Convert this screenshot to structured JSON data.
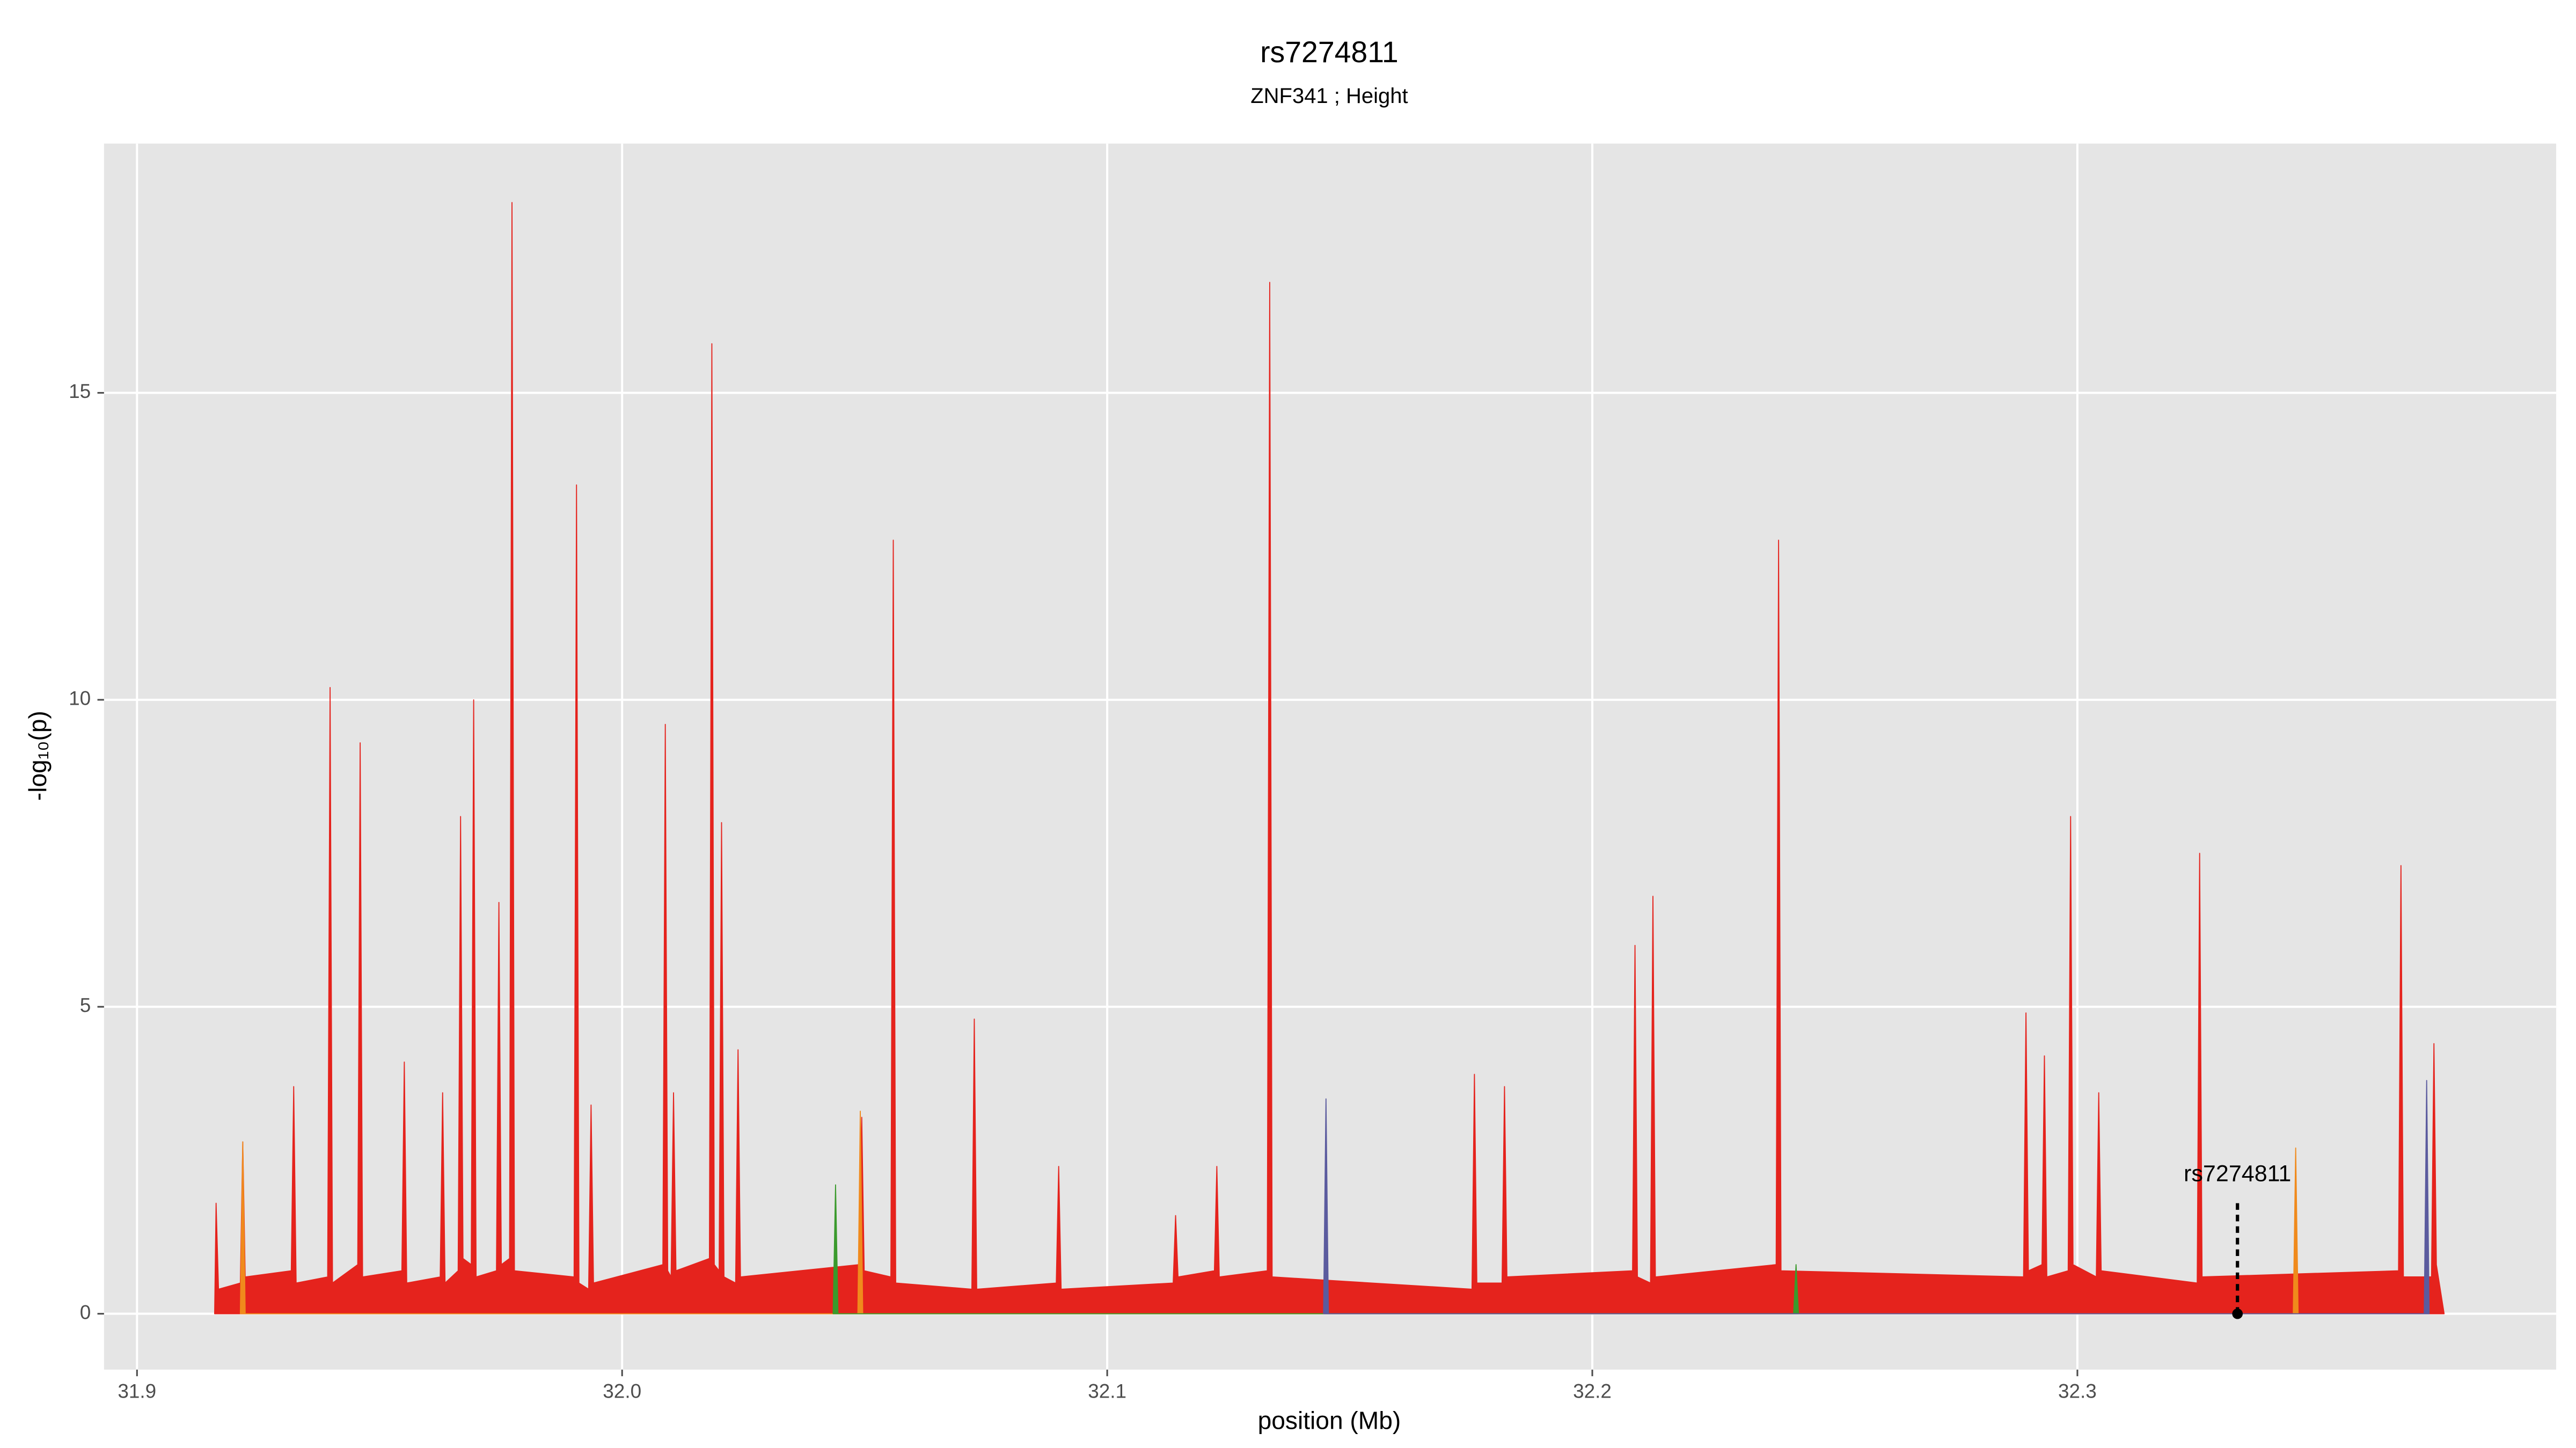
{
  "chart_data": {
    "type": "area",
    "title": "rs7274811",
    "subtitle": "ZNF341 ; Height",
    "x_label": "position (Mb)",
    "y_label": "-log₁₀(p)",
    "xlim": [
      31.8932,
      32.3987
    ],
    "ylim": [
      -0.91,
      19.06
    ],
    "xticks": [
      31.9,
      {
        "value": 32,
        "label": "32.0"
      },
      32.1,
      32.2,
      32.3
    ],
    "yticks": [
      0,
      5,
      10,
      15
    ],
    "grid": true,
    "series": [
      {
        "color": "#e5231d",
        "x": [
          31.916,
          31.9163,
          31.9168,
          31.9213,
          31.9218,
          31.9223,
          31.9318,
          31.9323,
          31.9328,
          31.9393,
          31.9398,
          31.9403,
          31.9455,
          31.946,
          31.9465,
          31.9546,
          31.9551,
          31.9556,
          31.9625,
          31.963,
          31.9635,
          31.9662,
          31.9667,
          31.9672,
          31.9689,
          31.9694,
          31.9699,
          31.9741,
          31.9746,
          31.9751,
          31.9768,
          31.9773,
          31.9778,
          31.9901,
          31.9906,
          31.9911,
          31.9931,
          31.9936,
          31.9941,
          32.0084,
          32.0089,
          32.0094,
          32.0101,
          32.0106,
          32.0111,
          32.018,
          32.0185,
          32.019,
          32.02,
          32.0205,
          32.021,
          32.0234,
          32.0239,
          32.0244,
          32.0489,
          32.0494,
          32.0499,
          32.0554,
          32.0559,
          32.0564,
          32.0721,
          32.0726,
          32.0731,
          32.0895,
          32.09,
          32.0905,
          32.1136,
          32.1141,
          32.1146,
          32.1221,
          32.1226,
          32.1231,
          32.133,
          32.1335,
          32.134,
          32.1752,
          32.1757,
          32.1762,
          32.1814,
          32.1819,
          32.1824,
          32.2083,
          32.2088,
          32.2093,
          32.212,
          32.2125,
          32.213,
          32.2379,
          32.2384,
          32.2389,
          32.2889,
          32.2894,
          32.2899,
          32.2927,
          32.2932,
          32.2937,
          32.2981,
          32.2986,
          32.2991,
          32.3039,
          32.3044,
          32.3049,
          32.3247,
          32.3252,
          32.3257,
          32.3662,
          32.3667,
          32.3672,
          32.373,
          32.3735,
          32.374,
          32.3756
        ],
        "values": [
          0,
          1.8,
          0.4,
          0.5,
          2.8,
          0.6,
          0.7,
          3.7,
          0.5,
          0.6,
          10.2,
          0.5,
          0.8,
          9.3,
          0.6,
          0.7,
          4.1,
          0.5,
          0.6,
          3.6,
          0.5,
          0.7,
          8.1,
          0.9,
          0.8,
          10.0,
          0.6,
          0.7,
          6.7,
          0.8,
          0.9,
          18.1,
          0.7,
          0.6,
          13.5,
          0.5,
          0.4,
          3.4,
          0.5,
          0.8,
          9.6,
          0.7,
          0.6,
          3.6,
          0.7,
          0.9,
          15.8,
          0.8,
          0.7,
          8.0,
          0.6,
          0.5,
          4.3,
          0.6,
          0.8,
          3.2,
          0.7,
          0.6,
          12.6,
          0.5,
          0.4,
          4.8,
          0.4,
          0.5,
          2.4,
          0.4,
          0.5,
          1.6,
          0.6,
          0.7,
          2.4,
          0.6,
          0.7,
          16.8,
          0.6,
          0.4,
          3.9,
          0.5,
          0.5,
          3.7,
          0.6,
          0.7,
          6.0,
          0.6,
          0.5,
          6.8,
          0.6,
          0.8,
          12.6,
          0.7,
          0.6,
          4.9,
          0.7,
          0.8,
          4.2,
          0.6,
          0.7,
          8.1,
          0.8,
          0.6,
          3.6,
          0.7,
          0.5,
          7.5,
          0.6,
          0.7,
          7.3,
          0.6,
          0.6,
          4.4,
          0.8,
          0
        ]
      },
      {
        "color": "#f08a1c",
        "x": [
          31.9213,
          31.9218,
          31.9223,
          32.0486,
          32.0491,
          32.0496,
          32.3445,
          32.345,
          32.3455
        ],
        "values": [
          0,
          2.8,
          0,
          0,
          3.3,
          0,
          0,
          2.7,
          0
        ]
      },
      {
        "color": "#3a9a2c",
        "x": [
          32.0435,
          32.044,
          32.0445,
          32.2415,
          32.242,
          32.2425
        ],
        "values": [
          0,
          2.1,
          0,
          0,
          0.8,
          0
        ]
      },
      {
        "color": "#5b5b9e",
        "x": [
          32.1446,
          32.1451,
          32.1456,
          32.3715,
          32.372,
          32.3725
        ],
        "values": [
          0,
          3.5,
          0,
          0,
          3.8,
          0
        ]
      }
    ],
    "annotation": {
      "text": "rs7274811",
      "x": 32.333,
      "y": 0
    }
  }
}
